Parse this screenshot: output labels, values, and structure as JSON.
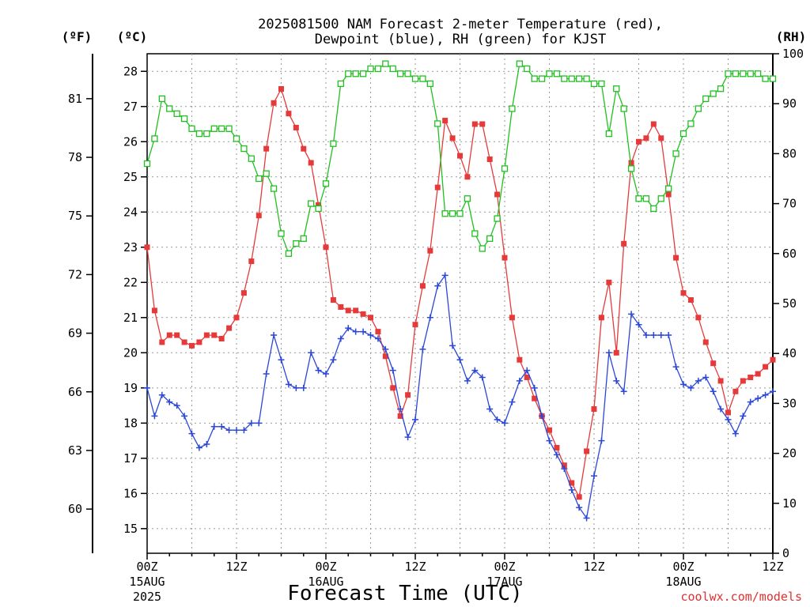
{
  "chart_data": {
    "type": "line",
    "title": "2025081500 NAM Forecast 2-meter Temperature (red),",
    "subtitle": "Dewpoint (blue), RH (green) for KJST",
    "xlabel": "Forecast Time (UTC)",
    "credit": "coolwx.com/models",
    "unit_f": "(ºF)",
    "unit_c": "(ºC)",
    "unit_rh": "(RH)",
    "x_range_hours": [
      0,
      84
    ],
    "x_ticks": [
      {
        "hour": 0,
        "label": "00Z",
        "date": "15AUG",
        "year": "2025"
      },
      {
        "hour": 12,
        "label": "12Z",
        "date": "",
        "year": ""
      },
      {
        "hour": 24,
        "label": "00Z",
        "date": "16AUG",
        "year": ""
      },
      {
        "hour": 36,
        "label": "12Z",
        "date": "",
        "year": ""
      },
      {
        "hour": 48,
        "label": "00Z",
        "date": "17AUG",
        "year": ""
      },
      {
        "hour": 60,
        "label": "12Z",
        "date": "",
        "year": ""
      },
      {
        "hour": 72,
        "label": "00Z",
        "date": "18AUG",
        "year": ""
      },
      {
        "hour": 84,
        "label": "12Z",
        "date": "",
        "year": ""
      }
    ],
    "y_left_celsius_range": [
      14.3,
      28.5
    ],
    "y_left_celsius_ticks": [
      15,
      16,
      17,
      18,
      19,
      20,
      21,
      22,
      23,
      24,
      25,
      26,
      27,
      28
    ],
    "y_fahrenheit_ticks": [
      60,
      63,
      66,
      69,
      72,
      75,
      78,
      81
    ],
    "y_right_rh_range": [
      0,
      100
    ],
    "y_right_rh_ticks": [
      0,
      10,
      20,
      30,
      40,
      50,
      60,
      70,
      80,
      90,
      100
    ],
    "grid": true,
    "series": [
      {
        "name": "Temperature",
        "axis": "celsius",
        "color": "#e63a3a",
        "marker": "filled-square",
        "x_hours": [
          0,
          1,
          2,
          3,
          4,
          5,
          6,
          7,
          8,
          9,
          10,
          11,
          12,
          13,
          14,
          15,
          16,
          17,
          18,
          19,
          20,
          21,
          22,
          23,
          24,
          25,
          26,
          27,
          28,
          29,
          30,
          31,
          32,
          33,
          34,
          35,
          36,
          37,
          38,
          39,
          40,
          41,
          42,
          43,
          44,
          45,
          46,
          47,
          48,
          49,
          50,
          51,
          52,
          53,
          54,
          55,
          56,
          57,
          58,
          59,
          60,
          61,
          62,
          63,
          64,
          65,
          66,
          67,
          68,
          69,
          70,
          71,
          72,
          73,
          74,
          75,
          76,
          77,
          78,
          79,
          80,
          81,
          82,
          83,
          84
        ],
        "values": [
          23.0,
          21.2,
          20.3,
          20.5,
          20.5,
          20.3,
          20.2,
          20.3,
          20.5,
          20.5,
          20.4,
          20.7,
          21.0,
          21.7,
          22.6,
          23.9,
          25.8,
          27.1,
          27.5,
          26.8,
          26.4,
          25.8,
          25.4,
          24.2,
          23.0,
          21.5,
          21.3,
          21.2,
          21.2,
          21.1,
          21.0,
          20.6,
          19.9,
          19.0,
          18.2,
          18.8,
          20.8,
          21.9,
          22.9,
          24.7,
          26.6,
          26.1,
          25.6,
          25.0,
          26.5,
          26.5,
          25.5,
          24.5,
          22.7,
          21.0,
          19.8,
          19.3,
          18.7,
          18.2,
          17.8,
          17.3,
          16.8,
          16.3,
          15.9,
          17.2,
          18.4,
          21.0,
          22.0,
          20.0,
          23.1,
          25.4,
          26.0,
          26.1,
          26.5,
          26.1,
          24.5,
          22.7,
          21.7,
          21.5,
          21.0,
          20.3,
          19.7,
          19.2,
          18.3,
          18.9,
          19.2,
          19.3,
          19.4,
          19.6,
          19.8
        ]
      },
      {
        "name": "Dewpoint",
        "axis": "celsius",
        "color": "#2a47d8",
        "marker": "plus",
        "x_hours": [
          0,
          1,
          2,
          3,
          4,
          5,
          6,
          7,
          8,
          9,
          10,
          11,
          12,
          13,
          14,
          15,
          16,
          17,
          18,
          19,
          20,
          21,
          22,
          23,
          24,
          25,
          26,
          27,
          28,
          29,
          30,
          31,
          32,
          33,
          34,
          35,
          36,
          37,
          38,
          39,
          40,
          41,
          42,
          43,
          44,
          45,
          46,
          47,
          48,
          49,
          50,
          51,
          52,
          53,
          54,
          55,
          56,
          57,
          58,
          59,
          60,
          61,
          62,
          63,
          64,
          65,
          66,
          67,
          68,
          69,
          70,
          71,
          72,
          73,
          74,
          75,
          76,
          77,
          78,
          79,
          80,
          81,
          82,
          83,
          84
        ],
        "values": [
          19.0,
          18.2,
          18.8,
          18.6,
          18.5,
          18.2,
          17.7,
          17.3,
          17.4,
          17.9,
          17.9,
          17.8,
          17.8,
          17.8,
          18.0,
          18.0,
          19.4,
          20.5,
          19.8,
          19.1,
          19.0,
          19.0,
          20.0,
          19.5,
          19.4,
          19.8,
          20.4,
          20.7,
          20.6,
          20.6,
          20.5,
          20.4,
          20.1,
          19.5,
          18.4,
          17.6,
          18.1,
          20.1,
          21.0,
          21.9,
          22.2,
          20.2,
          19.8,
          19.2,
          19.5,
          19.3,
          18.4,
          18.1,
          18.0,
          18.6,
          19.2,
          19.5,
          19.0,
          18.2,
          17.5,
          17.1,
          16.7,
          16.1,
          15.6,
          15.3,
          16.5,
          17.5,
          20.0,
          19.2,
          18.9,
          21.1,
          20.8,
          20.5,
          20.5,
          20.5,
          20.5,
          19.6,
          19.1,
          19.0,
          19.2,
          19.3,
          18.9,
          18.4,
          18.1,
          17.7,
          18.2,
          18.6,
          18.7,
          18.8,
          18.9
        ]
      },
      {
        "name": "RH",
        "axis": "rh",
        "color": "#20c020",
        "marker": "open-square",
        "x_hours": [
          0,
          1,
          2,
          3,
          4,
          5,
          6,
          7,
          8,
          9,
          10,
          11,
          12,
          13,
          14,
          15,
          16,
          17,
          18,
          19,
          20,
          21,
          22,
          23,
          24,
          25,
          26,
          27,
          28,
          29,
          30,
          31,
          32,
          33,
          34,
          35,
          36,
          37,
          38,
          39,
          40,
          41,
          42,
          43,
          44,
          45,
          46,
          47,
          48,
          49,
          50,
          51,
          52,
          53,
          54,
          55,
          56,
          57,
          58,
          59,
          60,
          61,
          62,
          63,
          64,
          65,
          66,
          67,
          68,
          69,
          70,
          71,
          72,
          73,
          74,
          75,
          76,
          77,
          78,
          79,
          80,
          81,
          82,
          83,
          84
        ],
        "values": [
          78,
          83,
          91,
          89,
          88,
          87,
          85,
          84,
          84,
          85,
          85,
          85,
          83,
          81,
          79,
          75,
          76,
          73,
          64,
          60,
          62,
          63,
          70,
          69,
          74,
          82,
          94,
          96,
          96,
          96,
          97,
          97,
          98,
          97,
          96,
          96,
          95,
          95,
          94,
          86,
          68,
          68,
          68,
          71,
          64,
          61,
          63,
          67,
          77,
          89,
          98,
          97,
          95,
          95,
          96,
          96,
          95,
          95,
          95,
          95,
          94,
          94,
          84,
          93,
          89,
          77,
          71,
          71,
          69,
          71,
          73,
          80,
          84,
          86,
          89,
          91,
          92,
          93,
          96,
          96,
          96,
          96,
          96,
          95,
          95
        ]
      }
    ]
  }
}
